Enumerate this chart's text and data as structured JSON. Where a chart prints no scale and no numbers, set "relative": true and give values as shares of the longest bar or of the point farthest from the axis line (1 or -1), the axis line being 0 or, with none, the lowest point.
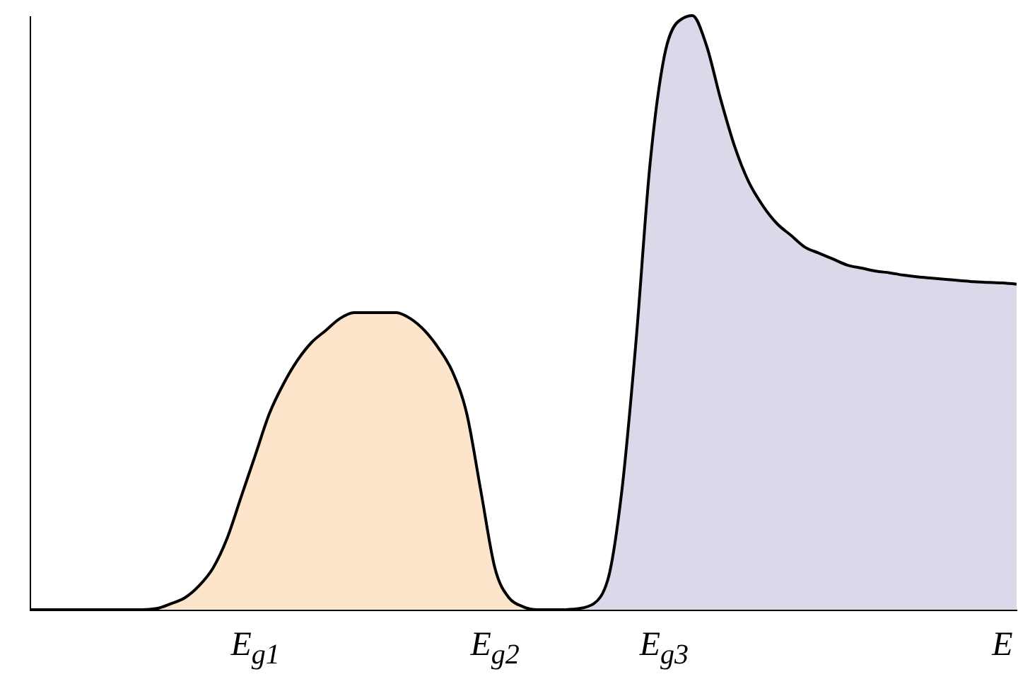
{
  "chart_data": {
    "type": "area",
    "relative": true,
    "categories": [
      null,
      null,
      null,
      null,
      null,
      null,
      null,
      null,
      null,
      null,
      null,
      null,
      null,
      null,
      null,
      null,
      "E$_{g1}$",
      null,
      null,
      null,
      null,
      null,
      null,
      null,
      null,
      null,
      null,
      null,
      null,
      null,
      null,
      null,
      null,
      "E$_{g2}$",
      null,
      null,
      null,
      null,
      null,
      null,
      null,
      null,
      null,
      null,
      null,
      "E$_{g3}$",
      null,
      null,
      null,
      null,
      null,
      null,
      null,
      null,
      null,
      null,
      null,
      null,
      null,
      null,
      null,
      null,
      null,
      null,
      null,
      null,
      null,
      null,
      null,
      "E",
      null
    ],
    "series": [
      {
        "color": "#fde5cc",
        "values": [
          0,
          0,
          0,
          0,
          0,
          0,
          0,
          0,
          0,
          0.002,
          0.01,
          0.02,
          0.04,
          0.07,
          0.12,
          0.19,
          0.26,
          0.33,
          0.38,
          0.42,
          0.45,
          0.47,
          0.49,
          0.5,
          0.5,
          0.5,
          0.5,
          0.49,
          0.47,
          0.44,
          0.4,
          0.33,
          0.2,
          0.07,
          0.02,
          0.005,
          0,
          0,
          0,
          null,
          null,
          null,
          null,
          null,
          null,
          null,
          null,
          null,
          null,
          null,
          null,
          null,
          null,
          null,
          null,
          null,
          null,
          null,
          null,
          null,
          null,
          null,
          null,
          null,
          null,
          null,
          null,
          null,
          null,
          null,
          null
        ]
      },
      {
        "color": "#d9d9ea",
        "values": [
          null,
          null,
          null,
          null,
          null,
          null,
          null,
          null,
          null,
          null,
          null,
          null,
          null,
          null,
          null,
          null,
          null,
          null,
          null,
          null,
          null,
          null,
          null,
          null,
          null,
          null,
          null,
          null,
          null,
          null,
          null,
          null,
          null,
          null,
          null,
          null,
          null,
          null,
          0,
          0.002,
          0.01,
          0.05,
          0.2,
          0.45,
          0.75,
          0.93,
          0.99,
          1,
          0.95,
          0.86,
          0.78,
          0.72,
          0.68,
          0.65,
          0.63,
          0.61,
          0.6,
          0.59,
          0.58,
          0.575,
          0.57,
          0.567,
          0.563,
          0.56,
          0.558,
          0.556,
          0.554,
          0.552,
          0.551,
          0.55,
          0.548
        ]
      }
    ]
  }
}
